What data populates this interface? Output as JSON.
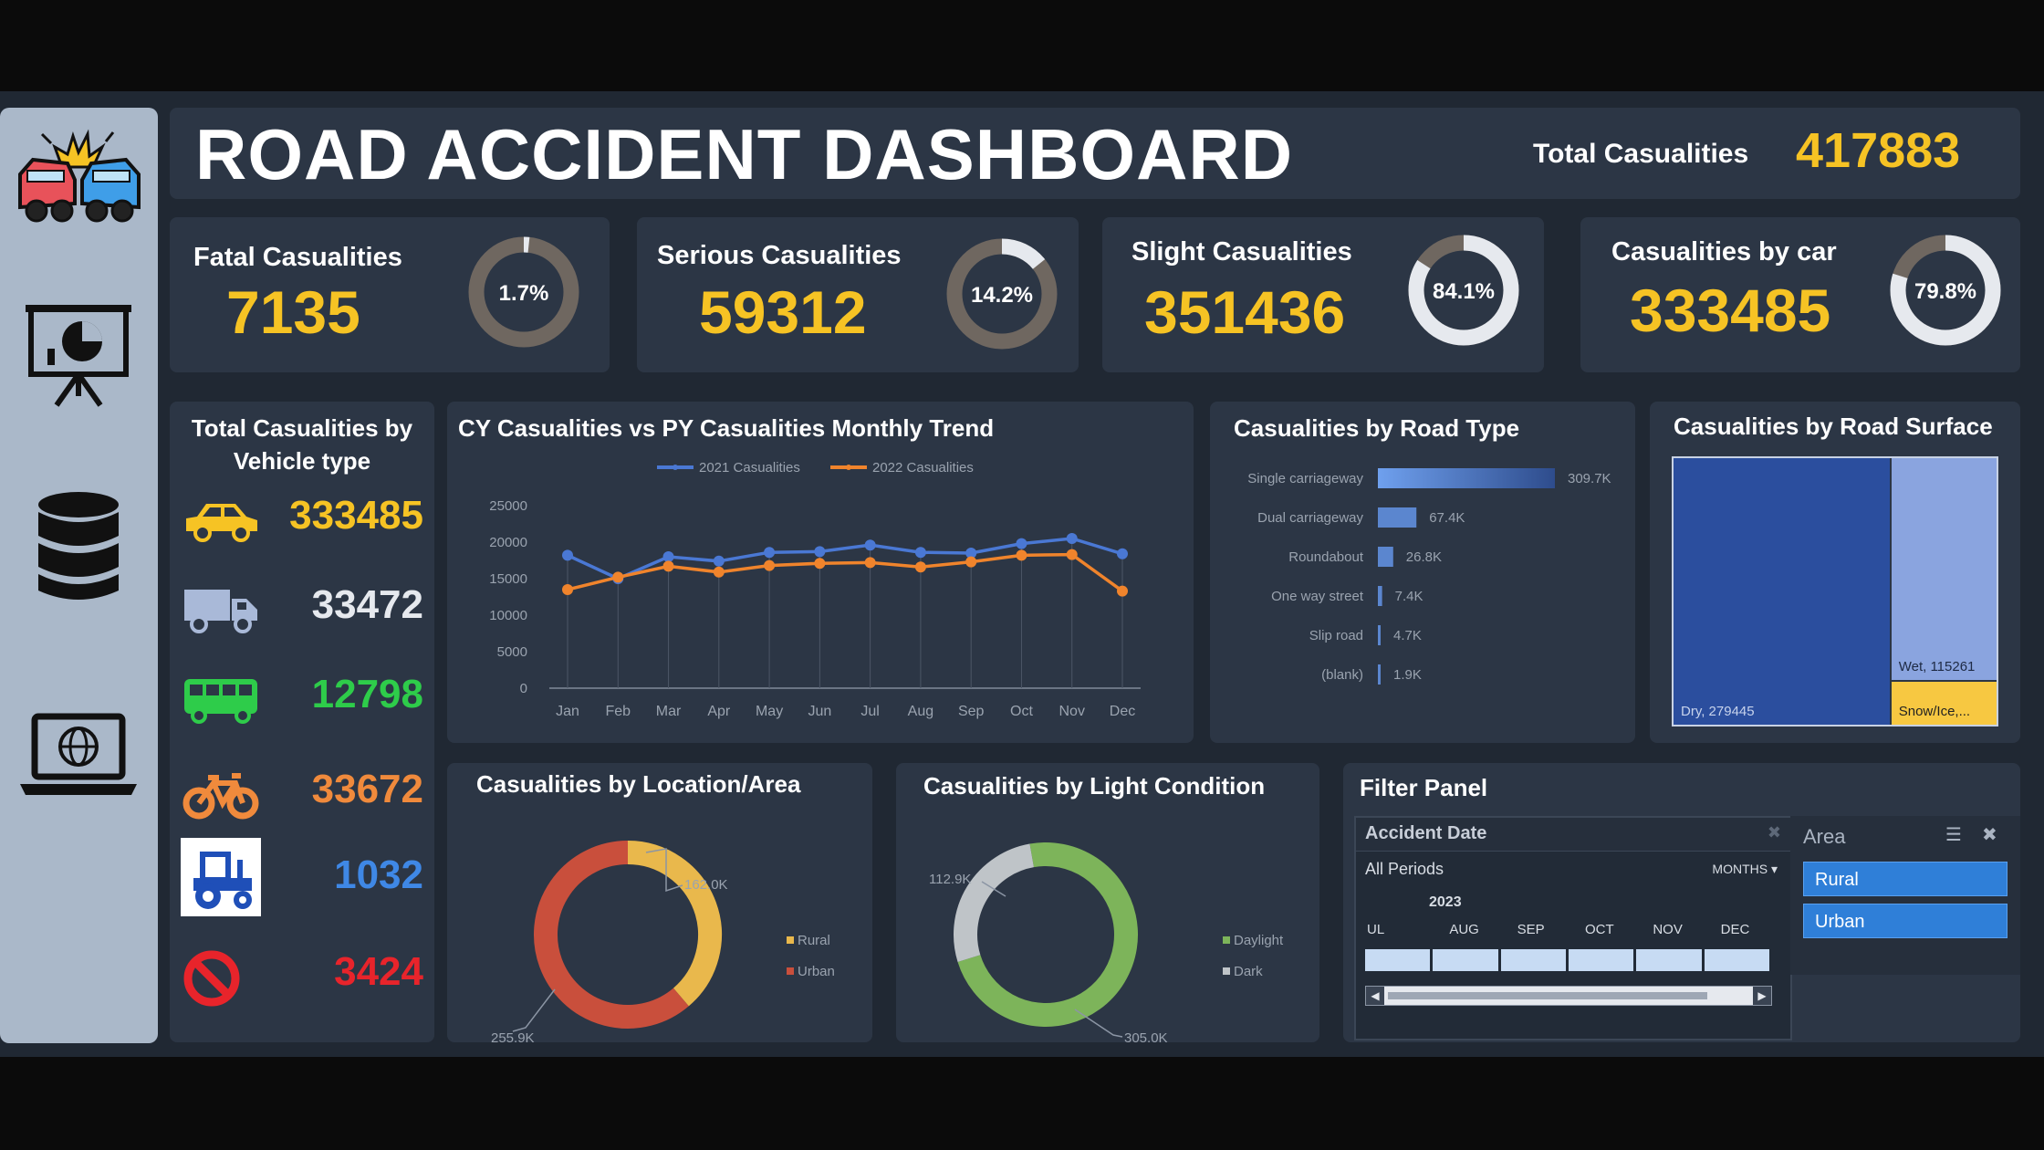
{
  "header": {
    "title": "ROAD ACCIDENT DASHBOARD",
    "total_label": "Total Casualities",
    "total_value": "417883"
  },
  "sidebar": {
    "items": [
      {
        "icon": "car-crash-icon"
      },
      {
        "icon": "presentation-chart-icon"
      },
      {
        "icon": "database-icon"
      },
      {
        "icon": "laptop-globe-icon"
      }
    ]
  },
  "kpis": [
    {
      "label": "Fatal Casualities",
      "value": "7135",
      "pct_label": "1.7%",
      "pct": 1.7
    },
    {
      "label": "Serious Casualities",
      "value": "59312",
      "pct_label": "14.2%",
      "pct": 14.2
    },
    {
      "label": "Slight Casualities",
      "value": "351436",
      "pct_label": "84.1%",
      "pct": 84.1
    },
    {
      "label": "Casualities by car",
      "value": "333485",
      "pct_label": "79.8%",
      "pct": 79.8
    }
  ],
  "vehicle": {
    "title_line1": "Total Casualities by",
    "title_line2": "Vehicle type",
    "items": [
      {
        "icon": "car-icon",
        "value": "333485",
        "color": "#f6c324"
      },
      {
        "icon": "van-icon",
        "value": "33472",
        "color": "#e6e9ee"
      },
      {
        "icon": "bus-icon",
        "value": "12798",
        "color": "#2ecc4a"
      },
      {
        "icon": "bike-icon",
        "value": "33672",
        "color": "#f08a3c"
      },
      {
        "icon": "tractor-icon",
        "value": "1032",
        "color": "#3f88e6"
      },
      {
        "icon": "no-entry-icon",
        "value": "3424",
        "color": "#e8242b"
      }
    ]
  },
  "trend": {
    "title": "CY Casualities vs PY Casualities Monthly Trend",
    "chart_data": {
      "type": "line",
      "categories": [
        "Jan",
        "Feb",
        "Mar",
        "Apr",
        "May",
        "Jun",
        "Jul",
        "Aug",
        "Sep",
        "Oct",
        "Nov",
        "Dec"
      ],
      "ylim": [
        0,
        25000
      ],
      "yticks": [
        "0",
        "5000",
        "10000",
        "15000",
        "20000",
        "25000"
      ],
      "series": [
        {
          "name": "2021 Casualities",
          "color": "#4a78d4",
          "values": [
            18200,
            15000,
            18000,
            17400,
            18600,
            18700,
            19600,
            18600,
            18500,
            19800,
            20500,
            18400
          ]
        },
        {
          "name": "2022 Casualities",
          "color": "#f0842c",
          "values": [
            13500,
            15200,
            16700,
            15900,
            16800,
            17100,
            17200,
            16600,
            17300,
            18200,
            18300,
            13300
          ]
        }
      ]
    }
  },
  "road_type": {
    "title": "Casualities by Road Type",
    "chart_data": {
      "type": "bar",
      "categories": [
        "Single carriageway",
        "Dual carriageway",
        "Roundabout",
        "One way street",
        "Slip road",
        "(blank)"
      ],
      "values": [
        309.7,
        67.4,
        26.8,
        7.4,
        4.7,
        1.9
      ],
      "labels": [
        "309.7K",
        "67.4K",
        "26.8K",
        "7.4K",
        "4.7K",
        "1.9K"
      ],
      "xlim": [
        0,
        309.7
      ]
    }
  },
  "road_surface": {
    "title": "Casualities by Road Surface",
    "chart_data": {
      "type": "treemap",
      "items": [
        {
          "label": "Dry, 279445",
          "value": 279445,
          "color": "#2b4e9e"
        },
        {
          "label": "Wet, 115261",
          "value": 115261,
          "color": "#8aa4df"
        },
        {
          "label": "Snow/Ice,...",
          "value": 23177,
          "color": "#f7c841"
        }
      ]
    }
  },
  "location": {
    "title": "Casualities by Location/Area",
    "chart_data": {
      "type": "pie",
      "series": [
        {
          "name": "Rural",
          "value": 162.0,
          "label": "162.0K",
          "color": "#e9b84c"
        },
        {
          "name": "Urban",
          "value": 255.9,
          "label": "255.9K",
          "color": "#c94f3c"
        }
      ]
    },
    "legend": [
      "Rural",
      "Urban"
    ]
  },
  "light": {
    "title": "Casualities by Light Condition",
    "chart_data": {
      "type": "pie",
      "series": [
        {
          "name": "Daylight",
          "value": 305.0,
          "label": "305.0K",
          "color": "#7db45a"
        },
        {
          "name": "Dark",
          "value": 112.9,
          "label": "112.9K",
          "color": "#bfc4c8"
        }
      ]
    },
    "legend": [
      "Daylight",
      "Dark"
    ]
  },
  "filter": {
    "title": "Filter Panel",
    "date_label": "Accident Date",
    "period_label": "All Periods",
    "granularity": "MONTHS",
    "year": "2023",
    "months": [
      "UL",
      "AUG",
      "SEP",
      "OCT",
      "NOV",
      "DEC"
    ],
    "area_label": "Area",
    "area_options": [
      "Rural",
      "Urban"
    ]
  }
}
